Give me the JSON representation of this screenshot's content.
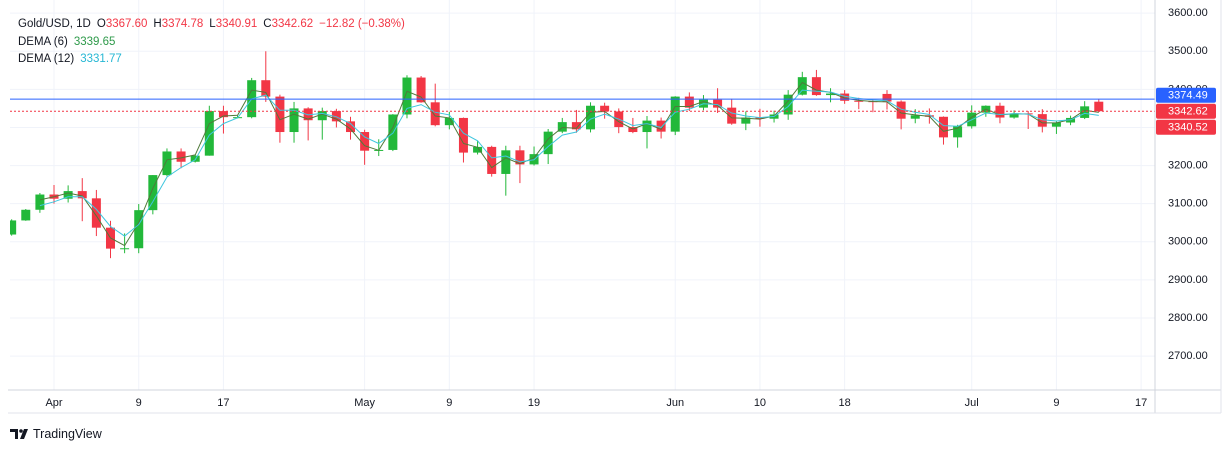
{
  "chart_data": {
    "type": "candlestick",
    "title": "Gold/USD, 1D",
    "header_fields": [
      {
        "key": "O",
        "value": "3367.60"
      },
      {
        "key": "H",
        "value": "3374.78"
      },
      {
        "key": "L",
        "value": "3340.91"
      },
      {
        "key": "C",
        "value": "3342.62"
      }
    ],
    "change": "−12.82 (−0.38%)",
    "categories": [
      null,
      null,
      null,
      "Apr",
      null,
      null,
      null,
      null,
      null,
      "9",
      null,
      null,
      null,
      null,
      null,
      "17",
      null,
      null,
      null,
      null,
      null,
      null,
      null,
      null,
      null,
      "May",
      null,
      null,
      null,
      null,
      null,
      "9",
      null,
      null,
      null,
      null,
      null,
      "19",
      null,
      null,
      null,
      null,
      null,
      null,
      null,
      null,
      null,
      "Jun",
      null,
      null,
      null,
      null,
      null,
      "10",
      null,
      null,
      null,
      null,
      null,
      "18",
      null,
      null,
      null,
      null,
      null,
      null,
      null,
      null,
      "Jul",
      null,
      null,
      null,
      null,
      null,
      "9",
      null,
      null,
      null,
      null,
      null,
      "17"
    ],
    "open": [
      3019,
      3056,
      3084,
      3124,
      3113,
      3133,
      3114,
      3037,
      2982,
      2983,
      3083,
      3175,
      3237,
      3210,
      3226,
      3343,
      3327,
      3327,
      3424,
      3381,
      3288,
      3350,
      3319,
      3343,
      3316,
      3288,
      3239,
      3241,
      3334,
      3431,
      3366,
      3306,
      3325,
      3234,
      3249,
      3178,
      3240,
      3203,
      3230,
      3289,
      3314,
      3295,
      3357,
      3342,
      3301,
      3288,
      3318,
      3289,
      3381,
      3352,
      3373,
      3352,
      3310,
      3326,
      3323,
      3334,
      3386,
      3432,
      3385,
      3389,
      3370,
      3369,
      3388,
      3368,
      3323,
      3332,
      3328,
      3274,
      3303,
      3339,
      3357,
      3326,
      3337,
      3335,
      3302,
      3313,
      3325,
      3367.6,
      null,
      null,
      null
    ],
    "high": [
      3059,
      3086,
      3128,
      3149,
      3148,
      3167,
      3136,
      3055,
      3022,
      3099,
      3175,
      3245,
      3245,
      3229,
      3357,
      3357,
      3331,
      3430,
      3500,
      3386,
      3367,
      3353,
      3352,
      3349,
      3328,
      3294,
      3269,
      3335,
      3437,
      3435,
      3415,
      3341,
      3326,
      3265,
      3252,
      3252,
      3252,
      3250,
      3296,
      3325,
      3346,
      3366,
      3365,
      3350,
      3325,
      3330,
      3326,
      3382,
      3392,
      3385,
      3403,
      3375,
      3342,
      3349,
      3344,
      3398,
      3446,
      3451,
      3403,
      3398,
      3378,
      3373,
      3398,
      3371,
      3348,
      3350,
      3329,
      3307,
      3358,
      3358,
      3365,
      3345,
      3343,
      3348,
      3317,
      3331,
      3369,
      3374.78,
      null,
      null,
      null
    ],
    "low": [
      3016,
      3055,
      3076,
      3100,
      3103,
      3054,
      3015,
      2957,
      2970,
      2970,
      3072,
      3172,
      3193,
      3208,
      3226,
      3284,
      3324,
      3324,
      3367,
      3260,
      3260,
      3266,
      3268,
      3300,
      3268,
      3202,
      3225,
      3238,
      3324,
      3365,
      3303,
      3295,
      3208,
      3229,
      3171,
      3121,
      3154,
      3200,
      3204,
      3285,
      3286,
      3287,
      3323,
      3285,
      3285,
      3245,
      3271,
      3280,
      3343,
      3345,
      3338,
      3307,
      3293,
      3302,
      3313,
      3320,
      3384,
      3383,
      3366,
      3362,
      3348,
      3340,
      3347,
      3295,
      3311,
      3310,
      3255,
      3247,
      3297,
      3328,
      3311,
      3323,
      3296,
      3287,
      3283,
      3306,
      3322,
      3340.91,
      null,
      null,
      null
    ],
    "close": [
      3056,
      3084,
      3124,
      3113,
      3133,
      3114,
      3037,
      2982,
      2983,
      3083,
      3175,
      3237,
      3210,
      3226,
      3343,
      3327,
      3327,
      3424,
      3381,
      3288,
      3350,
      3319,
      3343,
      3316,
      3288,
      3239,
      3241,
      3334,
      3431,
      3366,
      3306,
      3325,
      3234,
      3249,
      3178,
      3240,
      3203,
      3230,
      3289,
      3314,
      3295,
      3357,
      3342,
      3301,
      3288,
      3318,
      3289,
      3381,
      3352,
      3373,
      3352,
      3310,
      3326,
      3323,
      3334,
      3386,
      3432,
      3385,
      3389,
      3370,
      3369,
      3368,
      3368,
      3323,
      3332,
      3328,
      3274,
      3303,
      3339,
      3357,
      3326,
      3337,
      3335,
      3302,
      3313,
      3325,
      3355.44,
      3342.62,
      null,
      null,
      null
    ],
    "up_color": "#22b83a",
    "down_color": "#f23645",
    "series": [
      {
        "name": "DEMA (6)",
        "color": "#2e9a4a",
        "line_color": "#4f7a3a",
        "values": [
          null,
          null,
          3110,
          3118,
          3128,
          3120,
          3068,
          3010,
          2990,
          3050,
          3140,
          3215,
          3220,
          3228,
          3310,
          3330,
          3332,
          3398,
          3392,
          3320,
          3335,
          3322,
          3335,
          3322,
          3296,
          3252,
          3240,
          3300,
          3395,
          3380,
          3330,
          3325,
          3258,
          3248,
          3195,
          3220,
          3205,
          3220,
          3270,
          3300,
          3298,
          3340,
          3342,
          3315,
          3296,
          3310,
          3295,
          3355,
          3355,
          3368,
          3358,
          3325,
          3324,
          3322,
          3330,
          3370,
          3418,
          3398,
          3392,
          3377,
          3371,
          3368,
          3367,
          3338,
          3333,
          3329,
          3290,
          3298,
          3327,
          3348,
          3333,
          3336,
          3335,
          3312,
          3312,
          3321,
          3345,
          3339.65,
          null,
          null,
          null
        ]
      },
      {
        "name": "DEMA (12)",
        "color": "#26b7d4",
        "line_color": "#3fc6de",
        "values": [
          null,
          null,
          3095,
          3105,
          3118,
          3118,
          3085,
          3040,
          3015,
          3045,
          3105,
          3170,
          3195,
          3215,
          3280,
          3310,
          3325,
          3375,
          3385,
          3345,
          3345,
          3333,
          3337,
          3328,
          3310,
          3275,
          3258,
          3285,
          3350,
          3360,
          3340,
          3333,
          3285,
          3265,
          3220,
          3225,
          3210,
          3215,
          3250,
          3280,
          3288,
          3322,
          3335,
          3322,
          3305,
          3310,
          3300,
          3340,
          3348,
          3362,
          3360,
          3338,
          3330,
          3326,
          3329,
          3355,
          3398,
          3395,
          3393,
          3382,
          3376,
          3372,
          3370,
          3348,
          3340,
          3334,
          3305,
          3303,
          3320,
          3338,
          3334,
          3336,
          3335,
          3320,
          3317,
          3320,
          3337,
          3331.77,
          null,
          null,
          null
        ]
      }
    ],
    "ylim": [
      2611,
      3624
    ],
    "yticks": [
      {
        "value": 2700,
        "label": "2700.00"
      },
      {
        "value": 2800,
        "label": "2800.00"
      },
      {
        "value": 2900,
        "label": "2900.00"
      },
      {
        "value": 3000,
        "label": "3000.00"
      },
      {
        "value": 3100,
        "label": "3100.00"
      },
      {
        "value": 3200,
        "label": "3200.00"
      },
      {
        "value": 3300,
        "label": "3300.00"
      },
      {
        "value": 3400,
        "label": "3400.00"
      },
      {
        "value": 3500,
        "label": "3500.00"
      },
      {
        "value": 3600,
        "label": "3600.00"
      }
    ],
    "grid": true,
    "price_lines": [
      {
        "value": 3374.49,
        "color": "#2962ff",
        "style": "solid"
      },
      {
        "value": 3342.62,
        "color": "#f23645",
        "style": "dashed"
      },
      {
        "value": 3340.52,
        "color": "#f23645",
        "style": "none"
      }
    ]
  },
  "footer": {
    "brand": "TradingView"
  }
}
